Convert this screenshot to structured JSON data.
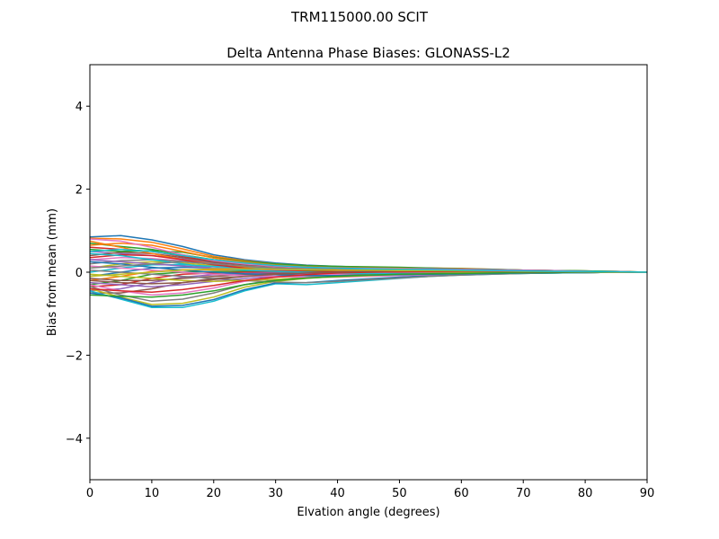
{
  "figure": {
    "suptitle": "TRM115000.00    SCIT"
  },
  "chart_data": {
    "type": "line",
    "title": "Delta Antenna Phase Biases: GLONASS-L2",
    "xlabel": "Elvation angle (degrees)",
    "ylabel": "Bias from mean (mm)",
    "xlim": [
      0,
      90
    ],
    "ylim": [
      -5,
      5
    ],
    "xticks": [
      0,
      10,
      20,
      30,
      40,
      50,
      60,
      70,
      80,
      90
    ],
    "yticks": [
      -4,
      -2,
      0,
      2,
      4
    ],
    "ytick_labels": [
      "−4",
      "−2",
      "0",
      "2",
      "4"
    ],
    "grid": false,
    "x": [
      0,
      5,
      10,
      15,
      20,
      25,
      30,
      35,
      40,
      45,
      50,
      55,
      60,
      65,
      70,
      75,
      80,
      85,
      90
    ],
    "palette": [
      "#1f77b4",
      "#ff7f0e",
      "#2ca02c",
      "#d62728",
      "#9467bd",
      "#8c564b",
      "#e377c2",
      "#7f7f7f",
      "#bcbd22",
      "#17becf"
    ],
    "series": [
      {
        "values": [
          0.85,
          0.88,
          0.78,
          0.62,
          0.42,
          0.3,
          0.22,
          0.17,
          0.14,
          0.12,
          0.1,
          0.09,
          0.07,
          0.06,
          0.05,
          0.04,
          0.03,
          0.02,
          0
        ]
      },
      {
        "values": [
          0.82,
          0.8,
          0.72,
          0.56,
          0.38,
          0.28,
          0.2,
          0.16,
          0.13,
          0.12,
          0.1,
          0.09,
          0.08,
          0.06,
          0.05,
          0.04,
          0.03,
          0.02,
          0
        ]
      },
      {
        "values": [
          0.7,
          0.62,
          0.55,
          0.42,
          0.3,
          0.22,
          0.17,
          0.14,
          0.12,
          0.11,
          0.1,
          0.08,
          0.07,
          0.06,
          0.05,
          0.04,
          0.03,
          0.01,
          0
        ]
      },
      {
        "values": [
          0.6,
          0.55,
          0.5,
          0.38,
          0.26,
          0.2,
          0.15,
          0.13,
          0.11,
          0.1,
          0.09,
          0.08,
          0.06,
          0.05,
          0.04,
          0.03,
          0.02,
          0.01,
          0
        ]
      },
      {
        "values": [
          0.5,
          0.45,
          0.4,
          0.32,
          0.22,
          0.17,
          0.13,
          0.11,
          0.1,
          0.09,
          0.08,
          0.07,
          0.06,
          0.05,
          0.04,
          0.03,
          0.02,
          0.01,
          0
        ]
      },
      {
        "values": [
          0.4,
          0.48,
          0.45,
          0.35,
          0.24,
          0.17,
          0.12,
          0.1,
          0.09,
          0.08,
          0.07,
          0.06,
          0.05,
          0.04,
          0.03,
          0.02,
          0.02,
          0.01,
          0
        ]
      },
      {
        "values": [
          0.3,
          0.35,
          0.33,
          0.27,
          0.2,
          0.15,
          0.11,
          0.09,
          0.08,
          0.07,
          0.06,
          0.05,
          0.05,
          0.04,
          0.03,
          0.02,
          0.02,
          0.01,
          0
        ]
      },
      {
        "values": [
          0.2,
          0.28,
          0.3,
          0.26,
          0.19,
          0.14,
          0.1,
          0.08,
          0.07,
          0.06,
          0.05,
          0.05,
          0.04,
          0.03,
          0.03,
          0.02,
          0.01,
          0.01,
          0
        ]
      },
      {
        "values": [
          0.1,
          0.2,
          0.25,
          0.22,
          0.16,
          0.12,
          0.09,
          0.07,
          0.06,
          0.05,
          0.05,
          0.04,
          0.04,
          0.03,
          0.02,
          0.02,
          0.01,
          0.01,
          0
        ]
      },
      {
        "values": [
          0.0,
          0.1,
          0.18,
          0.18,
          0.14,
          0.1,
          0.08,
          0.06,
          0.05,
          0.05,
          0.04,
          0.04,
          0.03,
          0.03,
          0.02,
          0.02,
          0.01,
          0.01,
          0
        ]
      },
      {
        "values": [
          -0.1,
          0.0,
          0.1,
          0.12,
          0.1,
          0.08,
          0.06,
          0.05,
          0.04,
          0.04,
          0.04,
          0.03,
          0.03,
          0.02,
          0.02,
          0.01,
          0.01,
          0,
          0
        ]
      },
      {
        "values": [
          -0.2,
          -0.1,
          0.02,
          0.06,
          0.06,
          0.05,
          0.04,
          0.04,
          0.04,
          0.03,
          0.03,
          0.03,
          0.02,
          0.02,
          0.02,
          0.01,
          0.01,
          0,
          0
        ]
      },
      {
        "values": [
          -0.3,
          -0.2,
          -0.05,
          0.0,
          0.02,
          0.02,
          0.02,
          0.03,
          0.03,
          0.03,
          0.02,
          0.02,
          0.02,
          0.02,
          0.01,
          0.01,
          0.01,
          0,
          0
        ]
      },
      {
        "values": [
          -0.35,
          -0.3,
          -0.15,
          -0.05,
          -0.02,
          0.0,
          0.0,
          0.01,
          0.02,
          0.02,
          0.02,
          0.02,
          0.01,
          0.01,
          0.01,
          0.01,
          0,
          0,
          0
        ]
      },
      {
        "values": [
          -0.45,
          -0.4,
          -0.25,
          -0.12,
          -0.06,
          -0.03,
          -0.02,
          0.0,
          0.01,
          0.01,
          0.01,
          0.01,
          0.01,
          0.01,
          0.01,
          0,
          0,
          0,
          0
        ]
      },
      {
        "values": [
          -0.5,
          -0.5,
          -0.4,
          -0.25,
          -0.15,
          -0.1,
          -0.06,
          -0.04,
          -0.02,
          -0.01,
          0.0,
          0.0,
          0.0,
          0.0,
          0.0,
          0,
          0,
          0,
          0
        ]
      },
      {
        "values": [
          -0.3,
          -0.45,
          -0.55,
          -0.5,
          -0.38,
          -0.22,
          -0.12,
          -0.08,
          -0.05,
          -0.03,
          -0.02,
          -0.01,
          -0.01,
          0.0,
          0.0,
          0,
          0,
          0,
          0
        ]
      },
      {
        "values": [
          -0.35,
          -0.55,
          -0.7,
          -0.65,
          -0.5,
          -0.3,
          -0.18,
          -0.12,
          -0.08,
          -0.05,
          -0.03,
          -0.02,
          -0.01,
          -0.01,
          0.0,
          0,
          0,
          0,
          0
        ]
      },
      {
        "values": [
          -0.4,
          -0.6,
          -0.78,
          -0.75,
          -0.6,
          -0.36,
          -0.22,
          -0.15,
          -0.1,
          -0.07,
          -0.05,
          -0.03,
          -0.02,
          -0.01,
          -0.01,
          0,
          0,
          0,
          0
        ]
      },
      {
        "values": [
          -0.45,
          -0.65,
          -0.85,
          -0.85,
          -0.7,
          -0.45,
          -0.28,
          -0.3,
          -0.25,
          -0.2,
          -0.15,
          -0.1,
          -0.07,
          -0.05,
          -0.03,
          -0.02,
          -0.01,
          0,
          0
        ]
      },
      {
        "values": [
          -0.5,
          -0.62,
          -0.82,
          -0.8,
          -0.66,
          -0.42,
          -0.26,
          -0.25,
          -0.2,
          -0.16,
          -0.12,
          -0.08,
          -0.06,
          -0.04,
          -0.03,
          -0.02,
          -0.01,
          0,
          0
        ]
      },
      {
        "values": [
          0.75,
          0.6,
          0.45,
          0.3,
          0.2,
          0.14,
          0.1,
          0.08,
          0.07,
          0.08,
          0.09,
          0.1,
          0.09,
          0.07,
          0.05,
          0.04,
          0.02,
          0.01,
          0
        ]
      },
      {
        "values": [
          0.55,
          0.5,
          0.52,
          0.48,
          0.35,
          0.26,
          0.2,
          0.16,
          0.14,
          0.13,
          0.12,
          0.1,
          0.08,
          0.07,
          0.05,
          0.04,
          0.03,
          0.02,
          0
        ]
      },
      {
        "values": [
          0.35,
          0.42,
          0.4,
          0.3,
          0.18,
          0.1,
          0.05,
          0.02,
          0.01,
          0.02,
          0.04,
          0.05,
          0.05,
          0.05,
          0.04,
          0.03,
          0.02,
          0.01,
          0
        ]
      },
      {
        "values": [
          -0.25,
          -0.3,
          -0.35,
          -0.3,
          -0.22,
          -0.15,
          -0.1,
          -0.05,
          -0.02,
          0.0,
          0.02,
          0.03,
          0.03,
          0.03,
          0.02,
          0.02,
          0.01,
          0.01,
          0
        ]
      },
      {
        "values": [
          -0.15,
          -0.2,
          -0.2,
          -0.15,
          -0.1,
          -0.06,
          -0.03,
          -0.01,
          0.0,
          0.01,
          0.02,
          0.02,
          0.02,
          0.02,
          0.02,
          0.01,
          0.01,
          0,
          0
        ]
      },
      {
        "values": [
          0.15,
          0.1,
          0.05,
          0.0,
          -0.05,
          -0.08,
          -0.1,
          -0.12,
          -0.12,
          -0.1,
          -0.08,
          -0.06,
          -0.04,
          -0.03,
          -0.02,
          -0.01,
          -0.01,
          0,
          0
        ]
      },
      {
        "values": [
          0.05,
          0.0,
          -0.05,
          -0.1,
          -0.15,
          -0.2,
          -0.24,
          -0.25,
          -0.22,
          -0.18,
          -0.14,
          -0.1,
          -0.07,
          -0.05,
          -0.03,
          -0.02,
          -0.01,
          0,
          0
        ]
      },
      {
        "values": [
          -0.05,
          -0.1,
          -0.15,
          -0.2,
          -0.22,
          -0.2,
          -0.17,
          -0.14,
          -0.11,
          -0.08,
          -0.06,
          -0.04,
          -0.03,
          -0.02,
          -0.02,
          -0.01,
          -0.01,
          0,
          0
        ]
      },
      {
        "values": [
          0.45,
          0.4,
          0.3,
          0.2,
          0.1,
          0.05,
          0.02,
          0.0,
          -0.02,
          -0.03,
          -0.04,
          -0.05,
          -0.04,
          -0.03,
          -0.02,
          -0.02,
          -0.01,
          0,
          0
        ]
      },
      {
        "values": [
          0.25,
          0.2,
          0.12,
          0.05,
          0.0,
          -0.04,
          -0.06,
          -0.08,
          -0.08,
          -0.07,
          -0.06,
          -0.05,
          -0.04,
          -0.03,
          -0.02,
          -0.01,
          -0.01,
          0,
          0
        ]
      },
      {
        "values": [
          0.65,
          0.7,
          0.65,
          0.5,
          0.34,
          0.24,
          0.17,
          0.13,
          0.11,
          0.1,
          0.09,
          0.08,
          0.07,
          0.05,
          0.04,
          0.03,
          0.02,
          0.01,
          0
        ]
      },
      {
        "values": [
          -0.55,
          -0.58,
          -0.6,
          -0.55,
          -0.45,
          -0.3,
          -0.2,
          -0.14,
          -0.1,
          -0.07,
          -0.05,
          -0.04,
          -0.03,
          -0.02,
          -0.01,
          -0.01,
          0,
          0,
          0
        ]
      },
      {
        "values": [
          -0.4,
          -0.45,
          -0.48,
          -0.42,
          -0.32,
          -0.2,
          -0.12,
          -0.06,
          -0.02,
          0.0,
          0.01,
          0.02,
          0.02,
          0.02,
          0.01,
          0.01,
          0.01,
          0,
          0
        ]
      },
      {
        "values": [
          0.3,
          0.25,
          0.2,
          0.15,
          0.1,
          0.08,
          0.06,
          0.06,
          0.06,
          0.07,
          0.08,
          0.08,
          0.07,
          0.06,
          0.05,
          0.04,
          0.02,
          0.01,
          0
        ]
      },
      {
        "values": [
          -0.2,
          -0.25,
          -0.28,
          -0.25,
          -0.18,
          -0.1,
          -0.05,
          -0.02,
          0.0,
          0.02,
          0.03,
          0.04,
          0.04,
          0.03,
          0.03,
          0.02,
          0.01,
          0.01,
          0
        ]
      },
      {
        "values": [
          0.8,
          0.75,
          0.6,
          0.42,
          0.28,
          0.2,
          0.15,
          0.12,
          0.1,
          0.09,
          0.08,
          0.07,
          0.06,
          0.05,
          0.04,
          0.03,
          0.02,
          0.01,
          0
        ]
      },
      {
        "values": [
          0.1,
          0.15,
          0.2,
          0.25,
          0.2,
          0.15,
          0.1,
          0.08,
          0.06,
          0.05,
          0.05,
          0.04,
          0.04,
          0.03,
          0.03,
          0.02,
          0.01,
          0.01,
          0
        ]
      },
      {
        "values": [
          -0.1,
          -0.05,
          0.0,
          0.05,
          0.08,
          0.08,
          0.07,
          0.06,
          0.05,
          0.05,
          0.04,
          0.04,
          0.03,
          0.03,
          0.02,
          0.02,
          0.01,
          0,
          0
        ]
      },
      {
        "values": [
          0.5,
          0.55,
          0.5,
          0.4,
          0.3,
          0.22,
          0.16,
          0.12,
          0.1,
          0.08,
          0.07,
          0.06,
          0.05,
          0.04,
          0.03,
          0.02,
          0.02,
          0.01,
          0
        ]
      }
    ]
  }
}
